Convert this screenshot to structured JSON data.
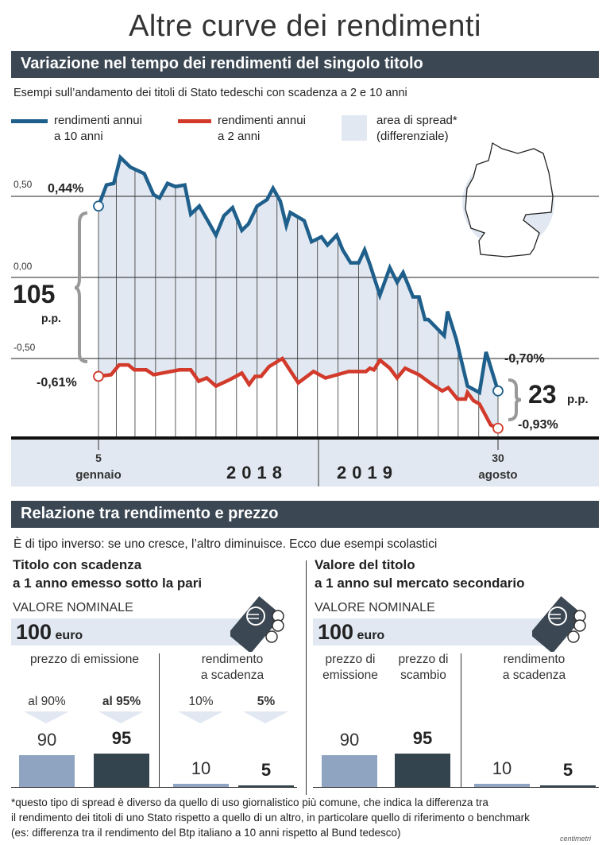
{
  "title": "Altre curve dei rendimenti",
  "section1": {
    "header": "Variazione nel tempo dei rendimenti del singolo titolo",
    "subtitle": "Esempi sull’andamento dei titoli di Stato tedeschi con scadenza a 2 e 10 anni",
    "legend": [
      {
        "line1": "rendimenti annui",
        "line2": "a 10 anni",
        "color": "#1f5f8b"
      },
      {
        "line1": "rendimenti annui",
        "line2": "a 2 anni",
        "color": "#d23a2b"
      },
      {
        "line1": "area di spread*",
        "line2": "(differenziale)",
        "color": "#e1e8f1"
      }
    ],
    "spread_start": {
      "value": "105",
      "unit": "p.p."
    },
    "spread_end": {
      "value": "23",
      "unit": "p.p."
    },
    "x_labels": {
      "start_day": "5",
      "start_month": "gennaio",
      "year1": "2018",
      "year2": "2019",
      "end_day": "30",
      "end_month": "agosto"
    },
    "map_icon": "germany-map-icon"
  },
  "chart_data": {
    "type": "line",
    "title": "",
    "xlabel": "",
    "ylabel": "",
    "ylim": [
      -1.0,
      0.8
    ],
    "yticks": [
      "0,50",
      "0,00",
      "-0,50"
    ],
    "ytick_values": [
      0.5,
      0.0,
      -0.5
    ],
    "grid": true,
    "area_between_series": true,
    "series": [
      {
        "name": "rendimenti annui a 10 anni",
        "color": "#1f5f8b",
        "start_label": "0,44%",
        "end_label": "-0,70%",
        "points": [
          [
            "2018-01-05",
            0.44
          ],
          [
            "2018-01-17",
            0.57
          ],
          [
            "2018-01-28",
            0.58
          ],
          [
            "2018-02-07",
            0.74
          ],
          [
            "2018-02-22",
            0.68
          ],
          [
            "2018-03-15",
            0.64
          ],
          [
            "2018-03-29",
            0.51
          ],
          [
            "2018-04-07",
            0.49
          ],
          [
            "2018-04-19",
            0.58
          ],
          [
            "2018-05-01",
            0.56
          ],
          [
            "2018-05-15",
            0.57
          ],
          [
            "2018-05-24",
            0.39
          ],
          [
            "2018-06-06",
            0.44
          ],
          [
            "2018-06-20",
            0.34
          ],
          [
            "2018-07-01",
            0.26
          ],
          [
            "2018-07-13",
            0.38
          ],
          [
            "2018-07-26",
            0.43
          ],
          [
            "2018-08-09",
            0.29
          ],
          [
            "2018-08-19",
            0.33
          ],
          [
            "2018-09-01",
            0.44
          ],
          [
            "2018-09-16",
            0.48
          ],
          [
            "2018-09-25",
            0.55
          ],
          [
            "2018-10-06",
            0.47
          ],
          [
            "2018-10-15",
            0.32
          ],
          [
            "2018-10-21",
            0.4
          ],
          [
            "2018-11-11",
            0.35
          ],
          [
            "2018-11-22",
            0.22
          ],
          [
            "2018-12-07",
            0.25
          ],
          [
            "2018-12-16",
            0.2
          ],
          [
            "2018-12-30",
            0.26
          ],
          [
            "2019-01-08",
            0.17
          ],
          [
            "2019-01-20",
            0.09
          ],
          [
            "2019-02-01",
            0.09
          ],
          [
            "2019-02-10",
            0.17
          ],
          [
            "2019-02-18",
            0.08
          ],
          [
            "2019-03-05",
            -0.11
          ],
          [
            "2019-03-20",
            0.06
          ],
          [
            "2019-03-31",
            -0.03
          ],
          [
            "2019-04-09",
            0.03
          ],
          [
            "2019-04-24",
            -0.12
          ],
          [
            "2019-05-03",
            -0.12
          ],
          [
            "2019-05-12",
            -0.26
          ],
          [
            "2019-05-17",
            -0.26
          ],
          [
            "2019-06-10",
            -0.36
          ],
          [
            "2019-06-15",
            -0.21
          ],
          [
            "2019-06-28",
            -0.38
          ],
          [
            "2019-07-15",
            -0.67
          ],
          [
            "2019-08-02",
            -0.71
          ],
          [
            "2019-08-12",
            -0.46
          ],
          [
            "2019-08-30",
            -0.7
          ]
        ]
      },
      {
        "name": "rendimenti annui a 2 anni",
        "color": "#d23a2b",
        "start_label": "-0,61%",
        "end_label": "-0,93%",
        "points": [
          [
            "2018-01-05",
            -0.61
          ],
          [
            "2018-01-24",
            -0.6
          ],
          [
            "2018-02-05",
            -0.54
          ],
          [
            "2018-02-19",
            -0.54
          ],
          [
            "2018-02-28",
            -0.57
          ],
          [
            "2018-03-18",
            -0.57
          ],
          [
            "2018-03-29",
            -0.6
          ],
          [
            "2018-05-07",
            -0.57
          ],
          [
            "2018-05-24",
            -0.57
          ],
          [
            "2018-06-05",
            -0.64
          ],
          [
            "2018-06-17",
            -0.62
          ],
          [
            "2018-07-01",
            -0.67
          ],
          [
            "2018-07-22",
            -0.63
          ],
          [
            "2018-08-09",
            -0.59
          ],
          [
            "2018-08-20",
            -0.66
          ],
          [
            "2018-08-29",
            -0.61
          ],
          [
            "2018-09-07",
            -0.61
          ],
          [
            "2018-09-19",
            -0.55
          ],
          [
            "2018-10-09",
            -0.5
          ],
          [
            "2018-11-02",
            -0.65
          ],
          [
            "2018-11-25",
            -0.58
          ],
          [
            "2018-12-13",
            -0.62
          ],
          [
            "2019-01-17",
            -0.58
          ],
          [
            "2019-02-12",
            -0.58
          ],
          [
            "2019-02-18",
            -0.56
          ],
          [
            "2019-02-24",
            -0.57
          ],
          [
            "2019-03-05",
            -0.51
          ],
          [
            "2019-03-20",
            -0.56
          ],
          [
            "2019-03-31",
            -0.62
          ],
          [
            "2019-04-12",
            -0.56
          ],
          [
            "2019-05-03",
            -0.6
          ],
          [
            "2019-05-23",
            -0.66
          ],
          [
            "2019-06-07",
            -0.7
          ],
          [
            "2019-06-16",
            -0.68
          ],
          [
            "2019-06-30",
            -0.75
          ],
          [
            "2019-07-12",
            -0.75
          ],
          [
            "2019-07-15",
            -0.71
          ],
          [
            "2019-07-24",
            -0.76
          ],
          [
            "2019-08-02",
            -0.78
          ],
          [
            "2019-08-19",
            -0.91
          ],
          [
            "2019-08-30",
            -0.93
          ]
        ]
      }
    ]
  },
  "section2": {
    "header": "Relazione tra rendimento e prezzo",
    "intro": "È di tipo inverso: se uno cresce, l’altro diminuisce. Ecco due esempi scolastici",
    "left": {
      "title1": "Titolo con scadenza",
      "title2": "a 1 anno emesso sotto la pari",
      "nominal_label": "VALORE NOMINALE",
      "nominal_value": "100",
      "nominal_unit": "euro",
      "group1_label": "prezzo di emissione",
      "group2_line1": "rendimento",
      "group2_line2": "a scadenza",
      "tags": [
        "al 90%",
        "al 95%",
        "10%",
        "5%"
      ],
      "bars": [
        {
          "label": "90",
          "value": 90,
          "color": "#8ea4c0"
        },
        {
          "label": "95",
          "value": 95,
          "color": "#34444f"
        },
        {
          "label": "10",
          "value": 10,
          "color": "#8ea4c0"
        },
        {
          "label": "5",
          "value": 5,
          "color": "#34444f"
        }
      ]
    },
    "right": {
      "title1": "Valore del titolo",
      "title2": "a 1 anno sul mercato secondario",
      "nominal_label": "VALORE NOMINALE",
      "nominal_value": "100",
      "nominal_unit": "euro",
      "col1_line1": "prezzo di",
      "col1_line2": "emissione",
      "col2_line1": "prezzo di",
      "col2_line2": "scambio",
      "group2_line1": "rendimento",
      "group2_line2": "a scadenza",
      "bars": [
        {
          "label": "90",
          "value": 90,
          "color": "#8ea4c0"
        },
        {
          "label": "95",
          "value": 95,
          "color": "#34444f"
        },
        {
          "label": "10",
          "value": 10,
          "color": "#8ea4c0"
        },
        {
          "label": "5",
          "value": 5,
          "color": "#34444f"
        }
      ]
    }
  },
  "footnote": [
    "*questo tipo di spread è diverso da quello di uso giornalistico più comune, che indica la differenza tra",
    "il rendimento dei titoli di uno Stato rispetto a quello di un altro, in particolare quello di riferimento o benchmark",
    "(es: differenza tra il rendimento del Btp italiano a 10 anni rispetto al Bund tedesco)"
  ],
  "logo": "centimetri"
}
